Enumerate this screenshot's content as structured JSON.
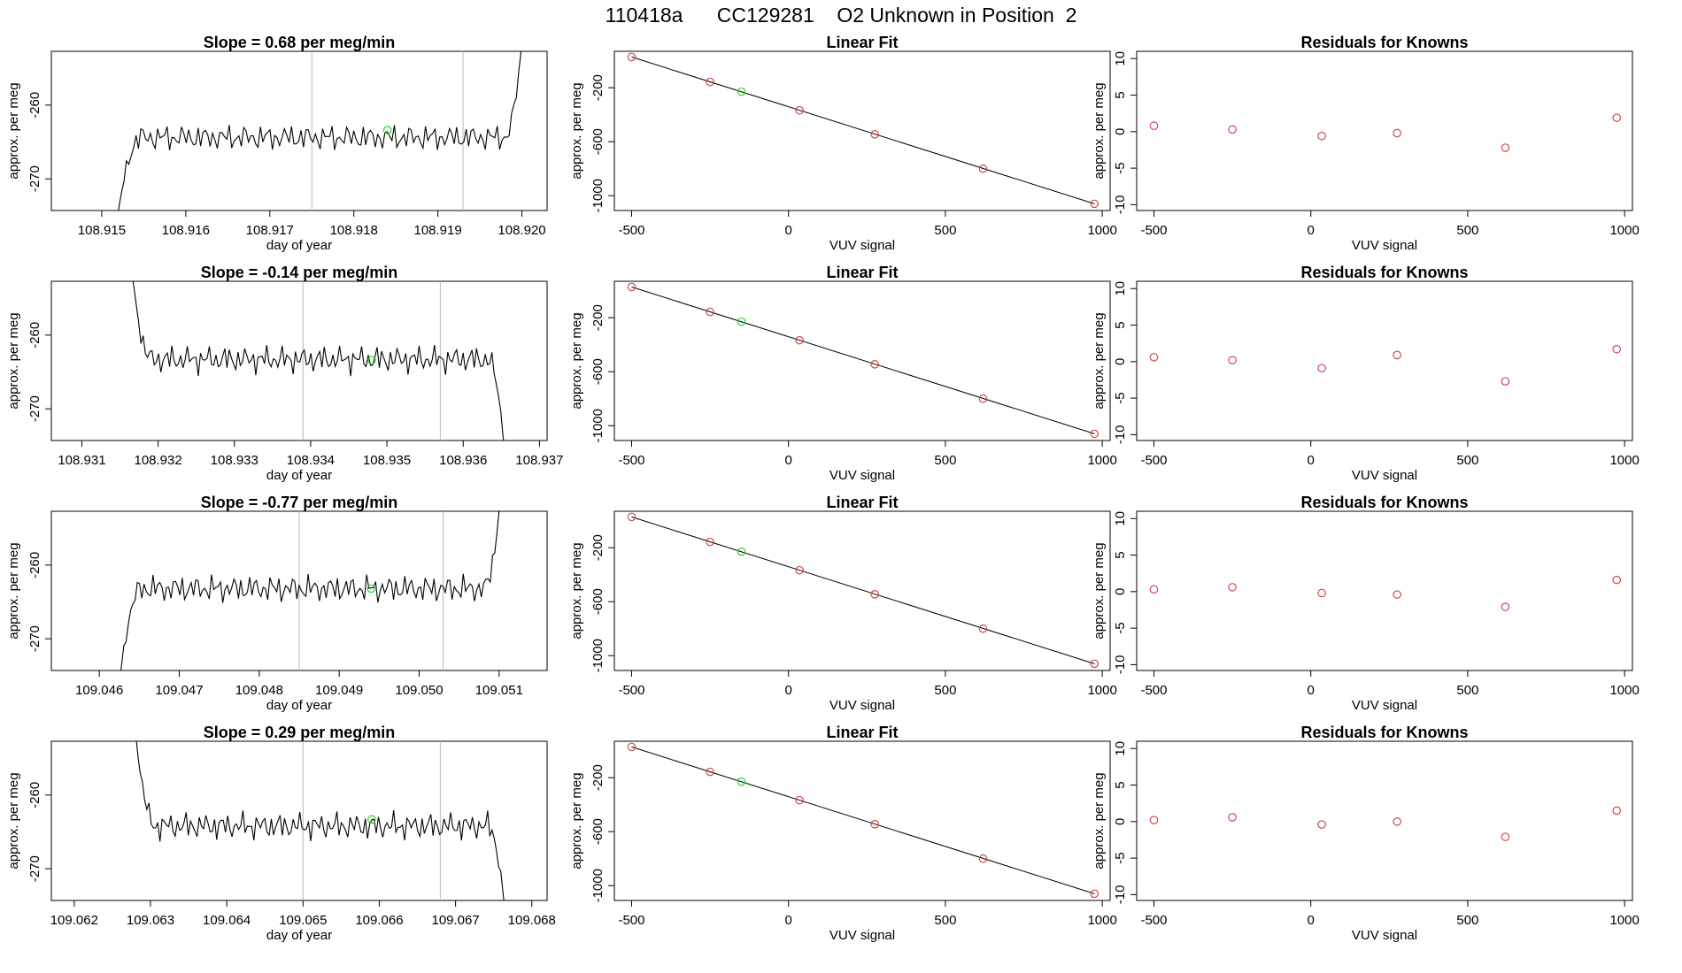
{
  "page": {
    "title": "110418a      CC129281    O2 Unknown in Position  2"
  },
  "style": {
    "line_color": "#000000",
    "known_color": "#cd4a4a",
    "unknown_color": "#2ed12e",
    "vline_color": "#bbbbbb"
  },
  "chart_data": [
    {
      "type": "line",
      "title": "Slope =  0.68  per meg/min",
      "xlabel": "day of year",
      "ylabel": "approx. per meg",
      "xlim": [
        108.9144,
        108.9203
      ],
      "ylim": [
        -274.3,
        -252.7
      ],
      "xticks": [
        108.915,
        108.916,
        108.917,
        108.918,
        108.919,
        108.92
      ],
      "xtick_labels": [
        "108.915",
        "108.916",
        "108.917",
        "108.918",
        "108.919",
        "108.920"
      ],
      "yticks": [
        -260,
        -270
      ],
      "ytick_labels": [
        "-260",
        "-270"
      ],
      "vlines": [
        108.9175,
        108.9193
      ],
      "trace_x_range": [
        108.91518,
        108.92002
      ],
      "trace_level": -264.4,
      "trace_amplitude": 1.8,
      "trace_start": -276,
      "trace_end": -249,
      "unknown_point": [
        108.9184,
        -263.4
      ]
    },
    {
      "type": "line",
      "title": "Slope =  -0.14  per meg/min",
      "xlabel": "day of year",
      "ylabel": "approx. per meg",
      "xlim": [
        108.9306,
        108.9371
      ],
      "ylim": [
        -274.3,
        -252.7
      ],
      "xticks": [
        108.931,
        108.932,
        108.933,
        108.934,
        108.935,
        108.936,
        108.937
      ],
      "xtick_labels": [
        "108.931",
        "108.932",
        "108.933",
        "108.934",
        "108.935",
        "108.936",
        "108.937"
      ],
      "yticks": [
        -260,
        -270
      ],
      "ytick_labels": [
        "-260",
        "-270"
      ],
      "vlines": [
        108.9339,
        108.9357
      ],
      "trace_x_range": [
        108.93163,
        108.93655
      ],
      "trace_level": -263.3,
      "trace_amplitude": 1.9,
      "trace_start": -249,
      "trace_end": -276,
      "unknown_point": [
        108.9348,
        -263.4
      ]
    },
    {
      "type": "line",
      "title": "Slope =  -0.77  per meg/min",
      "xlabel": "day of year",
      "ylabel": "approx. per meg",
      "xlim": [
        109.0454,
        109.0516
      ],
      "ylim": [
        -274.3,
        -252.7
      ],
      "xticks": [
        109.046,
        109.047,
        109.048,
        109.049,
        109.05,
        109.051
      ],
      "xtick_labels": [
        "109.046",
        "109.047",
        "109.048",
        "109.049",
        "109.050",
        "109.051"
      ],
      "yticks": [
        -260,
        -270
      ],
      "ytick_labels": [
        "-260",
        "-270"
      ],
      "vlines": [
        109.0485,
        109.0503
      ],
      "trace_x_range": [
        109.04625,
        109.05103
      ],
      "trace_level": -263.2,
      "trace_amplitude": 1.9,
      "trace_start": -276,
      "trace_end": -249,
      "unknown_point": [
        109.0494,
        -263.2
      ]
    },
    {
      "type": "line",
      "title": "Slope =  0.29  per meg/min",
      "xlabel": "day of year",
      "ylabel": "approx. per meg",
      "xlim": [
        109.0617,
        109.0682
      ],
      "ylim": [
        -274.3,
        -252.7
      ],
      "xticks": [
        109.062,
        109.063,
        109.064,
        109.065,
        109.066,
        109.067,
        109.068
      ],
      "xtick_labels": [
        "109.062",
        "109.063",
        "109.064",
        "109.065",
        "109.066",
        "109.067",
        "109.068"
      ],
      "yticks": [
        -260,
        -270
      ],
      "ytick_labels": [
        "-260",
        "-270"
      ],
      "vlines": [
        109.065,
        109.0668
      ],
      "trace_x_range": [
        109.06278,
        109.06765
      ],
      "trace_level": -264.2,
      "trace_amplitude": 1.9,
      "trace_start": -249,
      "trace_end": -276,
      "unknown_point": [
        109.0659,
        -263.3
      ]
    },
    {
      "type": "scatter",
      "title": "Linear Fit",
      "xlabel": "VUV signal",
      "ylabel": "approx. per meg",
      "xlim": [
        -555,
        1025
      ],
      "ylim": [
        -1110,
        70
      ],
      "xticks": [
        -500,
        0,
        500,
        1000
      ],
      "xtick_labels": [
        "-500",
        "0",
        "500",
        "1000"
      ],
      "yticks": [
        -200,
        -600,
        -1000
      ],
      "ytick_labels": [
        "-200",
        "-600",
        "-1000"
      ],
      "fit_line": [
        [
          -500,
          28
        ],
        [
          975,
          -1060
        ]
      ],
      "knowns": [
        [
          -500,
          28
        ],
        [
          -250,
          -157
        ],
        [
          35,
          -367
        ],
        [
          275,
          -545
        ],
        [
          620,
          -800
        ],
        [
          975,
          -1060
        ]
      ],
      "unknown": [
        [
          -150,
          -230
        ]
      ]
    },
    {
      "type": "scatter",
      "title": "Linear Fit",
      "xlabel": "VUV signal",
      "ylabel": "approx. per meg",
      "xlim": [
        -555,
        1025
      ],
      "ylim": [
        -1110,
        70
      ],
      "xticks": [
        -500,
        0,
        500,
        1000
      ],
      "xtick_labels": [
        "-500",
        "0",
        "500",
        "1000"
      ],
      "yticks": [
        -200,
        -600,
        -1000
      ],
      "ytick_labels": [
        "-200",
        "-600",
        "-1000"
      ],
      "fit_line": [
        [
          -500,
          28
        ],
        [
          975,
          -1060
        ]
      ],
      "knowns": [
        [
          -500,
          28
        ],
        [
          -250,
          -157
        ],
        [
          35,
          -367
        ],
        [
          275,
          -545
        ],
        [
          620,
          -800
        ],
        [
          975,
          -1060
        ]
      ],
      "unknown": [
        [
          -150,
          -230
        ]
      ]
    },
    {
      "type": "scatter",
      "title": "Linear Fit",
      "xlabel": "VUV signal",
      "ylabel": "approx. per meg",
      "xlim": [
        -555,
        1025
      ],
      "ylim": [
        -1110,
        70
      ],
      "xticks": [
        -500,
        0,
        500,
        1000
      ],
      "xtick_labels": [
        "-500",
        "0",
        "500",
        "1000"
      ],
      "yticks": [
        -200,
        -600,
        -1000
      ],
      "ytick_labels": [
        "-200",
        "-600",
        "-1000"
      ],
      "fit_line": [
        [
          -500,
          28
        ],
        [
          975,
          -1060
        ]
      ],
      "knowns": [
        [
          -500,
          28
        ],
        [
          -250,
          -157
        ],
        [
          35,
          -367
        ],
        [
          275,
          -545
        ],
        [
          620,
          -800
        ],
        [
          975,
          -1060
        ]
      ],
      "unknown": [
        [
          -150,
          -230
        ]
      ]
    },
    {
      "type": "scatter",
      "title": "Linear Fit",
      "xlabel": "VUV signal",
      "ylabel": "approx. per meg",
      "xlim": [
        -555,
        1025
      ],
      "ylim": [
        -1110,
        70
      ],
      "xticks": [
        -500,
        0,
        500,
        1000
      ],
      "xtick_labels": [
        "-500",
        "0",
        "500",
        "1000"
      ],
      "yticks": [
        -200,
        -600,
        -1000
      ],
      "ytick_labels": [
        "-200",
        "-600",
        "-1000"
      ],
      "fit_line": [
        [
          -500,
          28
        ],
        [
          975,
          -1060
        ]
      ],
      "knowns": [
        [
          -500,
          28
        ],
        [
          -250,
          -157
        ],
        [
          35,
          -367
        ],
        [
          275,
          -545
        ],
        [
          620,
          -800
        ],
        [
          975,
          -1060
        ]
      ],
      "unknown": [
        [
          -150,
          -230
        ]
      ]
    },
    {
      "type": "scatter",
      "title": "Residuals for Knowns",
      "xlabel": "VUV signal",
      "ylabel": "approx. per meg",
      "xlim": [
        -555,
        1025
      ],
      "ylim": [
        -10.8,
        11
      ],
      "xticks": [
        -500,
        0,
        500,
        1000
      ],
      "xtick_labels": [
        "-500",
        "0",
        "500",
        "1000"
      ],
      "yticks": [
        10,
        5,
        0,
        -5,
        -10
      ],
      "ytick_labels": [
        "10",
        "5",
        "0",
        "-5",
        "-10"
      ],
      "points": [
        [
          -500,
          0.8
        ],
        [
          -250,
          0.3
        ],
        [
          35,
          -0.6
        ],
        [
          275,
          -0.2
        ],
        [
          620,
          -2.2
        ],
        [
          975,
          1.9
        ]
      ]
    },
    {
      "type": "scatter",
      "title": "Residuals for Knowns",
      "xlabel": "VUV signal",
      "ylabel": "approx. per meg",
      "xlim": [
        -555,
        1025
      ],
      "ylim": [
        -10.8,
        11
      ],
      "xticks": [
        -500,
        0,
        500,
        1000
      ],
      "xtick_labels": [
        "-500",
        "0",
        "500",
        "1000"
      ],
      "yticks": [
        10,
        5,
        0,
        -5,
        -10
      ],
      "ytick_labels": [
        "10",
        "5",
        "0",
        "-5",
        "-10"
      ],
      "points": [
        [
          -500,
          0.6
        ],
        [
          -250,
          0.2
        ],
        [
          35,
          -0.9
        ],
        [
          275,
          0.9
        ],
        [
          620,
          -2.7
        ],
        [
          975,
          1.7
        ]
      ]
    },
    {
      "type": "scatter",
      "title": "Residuals for Knowns",
      "xlabel": "VUV signal",
      "ylabel": "approx. per meg",
      "xlim": [
        -555,
        1025
      ],
      "ylim": [
        -10.8,
        11
      ],
      "xticks": [
        -500,
        0,
        500,
        1000
      ],
      "xtick_labels": [
        "-500",
        "0",
        "500",
        "1000"
      ],
      "yticks": [
        10,
        5,
        0,
        -5,
        -10
      ],
      "ytick_labels": [
        "10",
        "5",
        "0",
        "-5",
        "-10"
      ],
      "points": [
        [
          -500,
          0.3
        ],
        [
          -250,
          0.6
        ],
        [
          35,
          -0.2
        ],
        [
          275,
          -0.4
        ],
        [
          620,
          -2.1
        ],
        [
          975,
          1.6
        ]
      ]
    },
    {
      "type": "scatter",
      "title": "Residuals for Knowns",
      "xlabel": "VUV signal",
      "ylabel": "approx. per meg",
      "xlim": [
        -555,
        1025
      ],
      "ylim": [
        -10.8,
        11
      ],
      "xticks": [
        -500,
        0,
        500,
        1000
      ],
      "xtick_labels": [
        "-500",
        "0",
        "500",
        "1000"
      ],
      "yticks": [
        10,
        5,
        0,
        -5,
        -10
      ],
      "ytick_labels": [
        "10",
        "5",
        "0",
        "-5",
        "-10"
      ],
      "points": [
        [
          -500,
          0.2
        ],
        [
          -250,
          0.6
        ],
        [
          35,
          -0.4
        ],
        [
          275,
          0.0
        ],
        [
          620,
          -2.1
        ],
        [
          975,
          1.5
        ]
      ]
    }
  ]
}
